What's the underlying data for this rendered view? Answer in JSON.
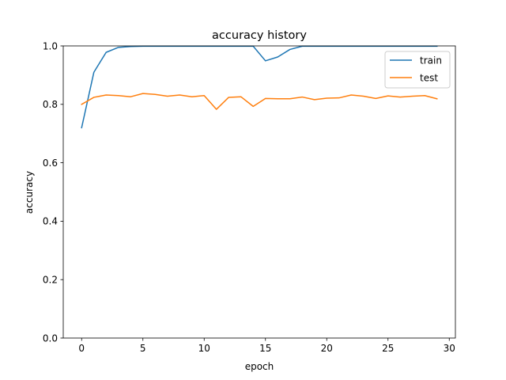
{
  "chart_data": {
    "type": "line",
    "title": "accuracy history",
    "xlabel": "epoch",
    "ylabel": "accuracy",
    "xlim": [
      -1.5,
      30.5
    ],
    "ylim": [
      0.0,
      1.0
    ],
    "xticks": [
      0,
      5,
      10,
      15,
      20,
      25,
      30
    ],
    "yticks": [
      0.0,
      0.2,
      0.4,
      0.6,
      0.8,
      1.0
    ],
    "xtick_labels": [
      "0",
      "5",
      "10",
      "15",
      "20",
      "25",
      "30"
    ],
    "ytick_labels": [
      "0.0",
      "0.2",
      "0.4",
      "0.6",
      "0.8",
      "1.0"
    ],
    "grid": false,
    "legend_position": "top-right",
    "x": [
      0,
      1,
      2,
      3,
      4,
      5,
      6,
      7,
      8,
      9,
      10,
      11,
      12,
      13,
      14,
      15,
      16,
      17,
      18,
      19,
      20,
      21,
      22,
      23,
      24,
      25,
      26,
      27,
      28,
      29
    ],
    "series": [
      {
        "name": "train",
        "color": "#1f77b4",
        "values": [
          0.72,
          0.91,
          0.978,
          0.995,
          0.998,
          0.999,
          0.999,
          0.999,
          0.999,
          0.999,
          0.999,
          0.999,
          0.999,
          0.999,
          0.999,
          0.949,
          0.962,
          0.988,
          0.999,
          0.999,
          0.999,
          0.999,
          0.999,
          0.999,
          0.999,
          0.999,
          0.999,
          0.999,
          0.999,
          0.999
        ]
      },
      {
        "name": "test",
        "color": "#ff7f0e",
        "values": [
          0.8,
          0.824,
          0.832,
          0.83,
          0.826,
          0.837,
          0.834,
          0.828,
          0.832,
          0.826,
          0.83,
          0.783,
          0.824,
          0.826,
          0.793,
          0.82,
          0.819,
          0.819,
          0.825,
          0.816,
          0.821,
          0.822,
          0.832,
          0.828,
          0.82,
          0.829,
          0.825,
          0.828,
          0.83,
          0.819
        ]
      }
    ]
  }
}
